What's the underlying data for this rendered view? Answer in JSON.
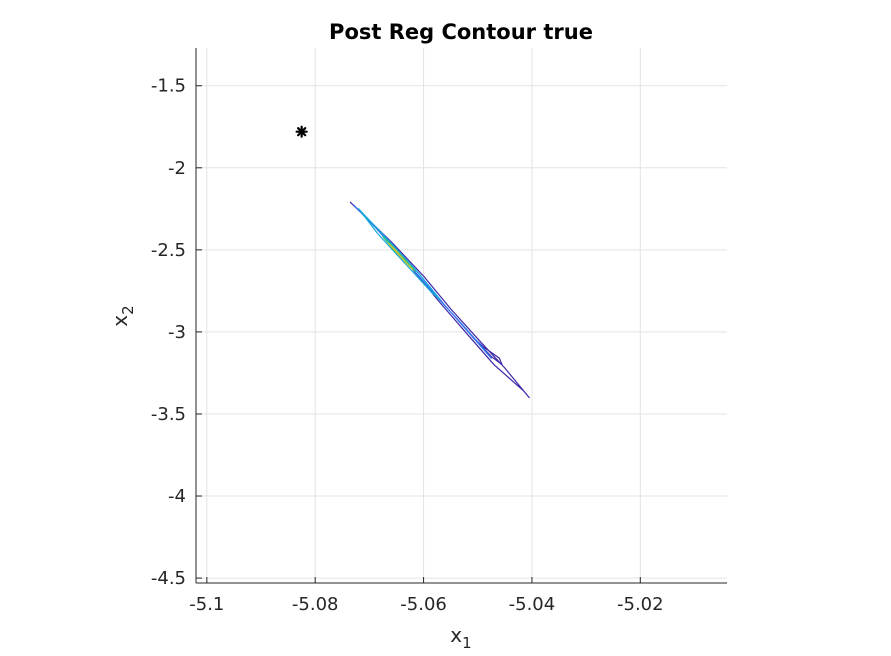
{
  "chart_data": {
    "type": "contour",
    "title": "Post Reg Contour true",
    "xlabel_base": "x",
    "xlabel_sub": "1",
    "ylabel_base": "x",
    "ylabel_sub": "2",
    "xlim": [
      -5.102,
      -5.004
    ],
    "ylim": [
      -4.53,
      -1.27
    ],
    "grid": true,
    "x_ticks": [
      {
        "value": -5.1,
        "label": "-5.1"
      },
      {
        "value": -5.08,
        "label": "-5.08"
      },
      {
        "value": -5.06,
        "label": "-5.06"
      },
      {
        "value": -5.04,
        "label": "-5.04"
      },
      {
        "value": -5.02,
        "label": "-5.02"
      }
    ],
    "y_ticks": [
      {
        "value": -1.5,
        "label": "-1.5"
      },
      {
        "value": -2,
        "label": "-2"
      },
      {
        "value": -2.5,
        "label": "-2.5"
      },
      {
        "value": -3,
        "label": "-3"
      },
      {
        "value": -3.5,
        "label": "-3.5"
      },
      {
        "value": -4,
        "label": "-4"
      },
      {
        "value": -4.5,
        "label": "-4.5"
      }
    ],
    "marker": {
      "x": -5.0825,
      "y": -1.78,
      "symbol": "asterisk",
      "color": "#000000"
    },
    "contours": [
      {
        "level": 1,
        "color": "#3e26a8",
        "points": [
          [
            -5.0735,
            -2.21
          ],
          [
            -5.066,
            -2.45
          ],
          [
            -5.06,
            -2.66
          ],
          [
            -5.055,
            -2.86
          ],
          [
            -5.0495,
            -3.06
          ],
          [
            -5.045,
            -3.22
          ],
          [
            -5.0405,
            -3.4
          ],
          [
            -5.0415,
            -3.36
          ],
          [
            -5.047,
            -3.2
          ],
          [
            -5.0515,
            -3.03
          ],
          [
            -5.057,
            -2.82
          ],
          [
            -5.0625,
            -2.6
          ],
          [
            -5.0685,
            -2.37
          ],
          [
            -5.0735,
            -2.21
          ]
        ]
      },
      {
        "level": 1,
        "color": "#3e26a8",
        "points": [
          [
            -5.051,
            -3.03
          ],
          [
            -5.049,
            -3.09
          ],
          [
            -5.046,
            -3.16
          ],
          [
            -5.0455,
            -3.2
          ],
          [
            -5.0475,
            -3.15
          ],
          [
            -5.0495,
            -3.08
          ],
          [
            -5.051,
            -3.03
          ]
        ]
      },
      {
        "level": 2,
        "color": "#2c73f0",
        "points": [
          [
            -5.0728,
            -2.23
          ],
          [
            -5.0665,
            -2.44
          ],
          [
            -5.061,
            -2.64
          ],
          [
            -5.056,
            -2.84
          ],
          [
            -5.0515,
            -3.01
          ],
          [
            -5.0475,
            -3.16
          ],
          [
            -5.049,
            -3.1
          ],
          [
            -5.053,
            -2.95
          ],
          [
            -5.058,
            -2.77
          ],
          [
            -5.0635,
            -2.56
          ],
          [
            -5.069,
            -2.36
          ],
          [
            -5.0728,
            -2.23
          ]
        ]
      },
      {
        "level": 3,
        "color": "#17a9d8",
        "points": [
          [
            -5.072,
            -2.25
          ],
          [
            -5.0668,
            -2.43
          ],
          [
            -5.0615,
            -2.62
          ],
          [
            -5.057,
            -2.8
          ],
          [
            -5.0585,
            -2.76
          ],
          [
            -5.0635,
            -2.58
          ],
          [
            -5.0685,
            -2.4
          ],
          [
            -5.072,
            -2.25
          ]
        ]
      },
      {
        "level": 4,
        "color": "#37c583",
        "points": [
          [
            -5.0675,
            -2.42
          ],
          [
            -5.0645,
            -2.52
          ],
          [
            -5.0615,
            -2.63
          ],
          [
            -5.0625,
            -2.6
          ],
          [
            -5.0655,
            -2.5
          ],
          [
            -5.0675,
            -2.42
          ]
        ]
      },
      {
        "level": 5,
        "color": "#c6c22b",
        "points": [
          [
            -5.0665,
            -2.46
          ],
          [
            -5.064,
            -2.55
          ],
          [
            -5.062,
            -2.62
          ],
          [
            -5.0632,
            -2.58
          ],
          [
            -5.0652,
            -2.5
          ],
          [
            -5.0665,
            -2.46
          ]
        ]
      }
    ]
  }
}
